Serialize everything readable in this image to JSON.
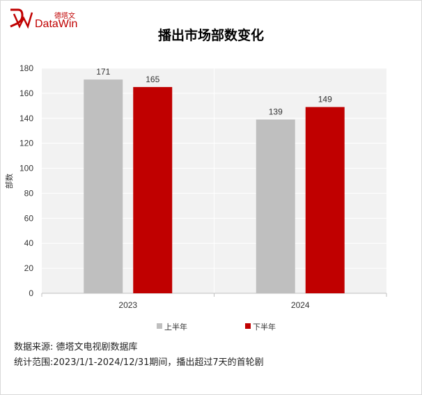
{
  "logo": {
    "cn": "德塔文",
    "en": "DataWin",
    "brand_color": "#c00000"
  },
  "chart_data": {
    "type": "bar",
    "title": "播出市场部数变化",
    "xlabel": "",
    "ylabel": "部数",
    "categories": [
      "2023",
      "2024"
    ],
    "series": [
      {
        "name": "上半年",
        "values": [
          171,
          139
        ],
        "color": "#bfbfbf"
      },
      {
        "name": "下半年",
        "values": [
          165,
          149
        ],
        "color": "#c00000"
      }
    ],
    "ylim": [
      0,
      180
    ],
    "yticks": [
      0,
      20,
      40,
      60,
      80,
      100,
      120,
      140,
      160,
      180
    ],
    "grid": true,
    "legend_position": "bottom",
    "plot_background": "#f2f2f2"
  },
  "notes": {
    "source": "数据来源: 德塔文电视剧数据库",
    "scope": "统计范围:2023/1/1-2024/12/31期间，播出超过7天的首轮剧"
  }
}
